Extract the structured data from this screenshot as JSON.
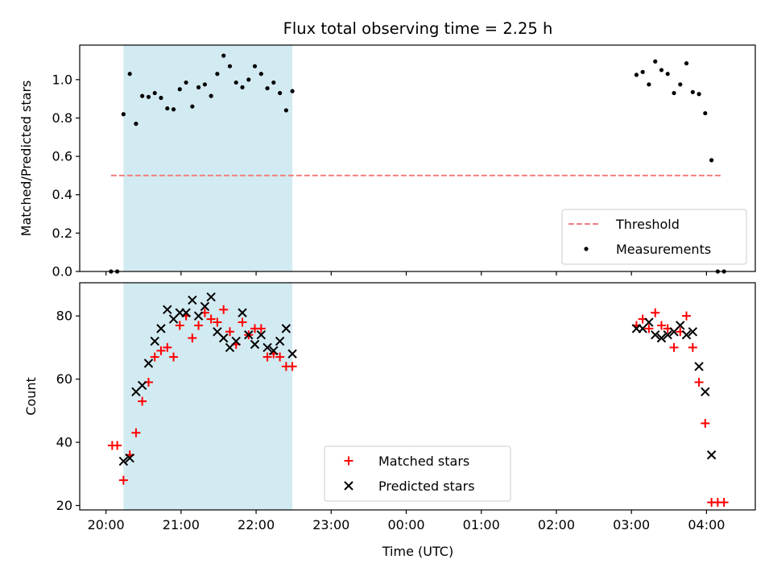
{
  "chart_data": {
    "title": "Flux total observing time = 2.25 h",
    "xlabel": "Time (UTC)",
    "x_unit": "hours since 20:00",
    "xlim": [
      -0.35,
      8.65
    ],
    "xticks": [
      {
        "value": 0,
        "label": "20:00"
      },
      {
        "value": 1,
        "label": "21:00"
      },
      {
        "value": 2,
        "label": "22:00"
      },
      {
        "value": 3,
        "label": "23:00"
      },
      {
        "value": 4,
        "label": "00:00"
      },
      {
        "value": 5,
        "label": "01:00"
      },
      {
        "value": 6,
        "label": "02:00"
      },
      {
        "value": 7,
        "label": "03:00"
      },
      {
        "value": 8,
        "label": "04:00"
      }
    ],
    "shaded_interval": {
      "start": 0.233,
      "end": 2.483,
      "color": "#add8e6"
    },
    "panels": [
      {
        "type": "scatter",
        "ylabel": "Matched/Predicted stars",
        "ylim": [
          0.0,
          1.18
        ],
        "yticks": [
          "0.0",
          "0.2",
          "0.4",
          "0.6",
          "0.8",
          "1.0"
        ],
        "ytick_values": [
          0.0,
          0.2,
          0.4,
          0.6,
          0.8,
          1.0
        ],
        "threshold": {
          "name": "Threshold",
          "value": 0.5,
          "x_start": 0.067,
          "x_end": 8.2,
          "color": "#f08080"
        },
        "series": [
          {
            "name": "Measurements",
            "color": "#000000",
            "marker": "dot",
            "points": [
              [
                0.067,
                0.0
              ],
              [
                0.15,
                0.0
              ],
              [
                0.233,
                0.82
              ],
              [
                0.317,
                1.03
              ],
              [
                0.4,
                0.77
              ],
              [
                0.483,
                0.915
              ],
              [
                0.567,
                0.91
              ],
              [
                0.65,
                0.93
              ],
              [
                0.733,
                0.905
              ],
              [
                0.817,
                0.85
              ],
              [
                0.9,
                0.845
              ],
              [
                0.983,
                0.95
              ],
              [
                1.067,
                0.985
              ],
              [
                1.15,
                0.86
              ],
              [
                1.233,
                0.96
              ],
              [
                1.317,
                0.975
              ],
              [
                1.4,
                0.915
              ],
              [
                1.483,
                1.03
              ],
              [
                1.567,
                1.125
              ],
              [
                1.65,
                1.07
              ],
              [
                1.733,
                0.985
              ],
              [
                1.817,
                0.96
              ],
              [
                1.9,
                1.0
              ],
              [
                1.983,
                1.07
              ],
              [
                2.067,
                1.03
              ],
              [
                2.15,
                0.955
              ],
              [
                2.233,
                0.985
              ],
              [
                2.317,
                0.93
              ],
              [
                2.4,
                0.84
              ],
              [
                2.483,
                0.94
              ],
              [
                7.067,
                1.025
              ],
              [
                7.15,
                1.04
              ],
              [
                7.233,
                0.975
              ],
              [
                7.317,
                1.095
              ],
              [
                7.4,
                1.05
              ],
              [
                7.483,
                1.03
              ],
              [
                7.567,
                0.93
              ],
              [
                7.65,
                0.975
              ],
              [
                7.733,
                1.085
              ],
              [
                7.817,
                0.935
              ],
              [
                7.9,
                0.925
              ],
              [
                7.983,
                0.825
              ],
              [
                8.067,
                0.58
              ],
              [
                8.15,
                0.0
              ],
              [
                8.233,
                0.0
              ]
            ]
          }
        ],
        "legend": {
          "placement": "lower right",
          "entries": [
            "Threshold",
            "Measurements"
          ]
        }
      },
      {
        "type": "scatter",
        "ylabel": "Count",
        "ylim": [
          18.6,
          90.5
        ],
        "yticks": [
          "20",
          "40",
          "60",
          "80"
        ],
        "ytick_values": [
          20,
          40,
          60,
          80
        ],
        "series": [
          {
            "name": "Matched stars",
            "color": "#ff0000",
            "marker": "plus",
            "points": [
              [
                0.083,
                39
              ],
              [
                0.15,
                39
              ],
              [
                0.233,
                28
              ],
              [
                0.317,
                36
              ],
              [
                0.4,
                43
              ],
              [
                0.483,
                53
              ],
              [
                0.567,
                59
              ],
              [
                0.65,
                67
              ],
              [
                0.733,
                69
              ],
              [
                0.817,
                70
              ],
              [
                0.9,
                67
              ],
              [
                0.983,
                77
              ],
              [
                1.067,
                80
              ],
              [
                1.15,
                73
              ],
              [
                1.233,
                77
              ],
              [
                1.317,
                81
              ],
              [
                1.4,
                79
              ],
              [
                1.483,
                78
              ],
              [
                1.567,
                82
              ],
              [
                1.65,
                75
              ],
              [
                1.733,
                71
              ],
              [
                1.817,
                78
              ],
              [
                1.9,
                74
              ],
              [
                1.983,
                76
              ],
              [
                2.067,
                76
              ],
              [
                2.15,
                67
              ],
              [
                2.233,
                68
              ],
              [
                2.317,
                67
              ],
              [
                2.4,
                64
              ],
              [
                2.483,
                64
              ],
              [
                7.067,
                77
              ],
              [
                7.15,
                79
              ],
              [
                7.233,
                76
              ],
              [
                7.317,
                81
              ],
              [
                7.4,
                77
              ],
              [
                7.483,
                76
              ],
              [
                7.567,
                70
              ],
              [
                7.65,
                75
              ],
              [
                7.733,
                80
              ],
              [
                7.817,
                70
              ],
              [
                7.9,
                59
              ],
              [
                7.983,
                46
              ],
              [
                8.067,
                21
              ],
              [
                8.15,
                21
              ],
              [
                8.233,
                21
              ]
            ]
          },
          {
            "name": "Predicted stars",
            "color": "#000000",
            "marker": "x",
            "points": [
              [
                0.233,
                34
              ],
              [
                0.317,
                35
              ],
              [
                0.4,
                56
              ],
              [
                0.483,
                58
              ],
              [
                0.567,
                65
              ],
              [
                0.65,
                72
              ],
              [
                0.733,
                76
              ],
              [
                0.817,
                82
              ],
              [
                0.9,
                79
              ],
              [
                0.983,
                81
              ],
              [
                1.067,
                81
              ],
              [
                1.15,
                85
              ],
              [
                1.233,
                80
              ],
              [
                1.317,
                83
              ],
              [
                1.4,
                86
              ],
              [
                1.483,
                75
              ],
              [
                1.567,
                73
              ],
              [
                1.65,
                70
              ],
              [
                1.733,
                72
              ],
              [
                1.817,
                81
              ],
              [
                1.9,
                74
              ],
              [
                1.983,
                71
              ],
              [
                2.067,
                74
              ],
              [
                2.15,
                70
              ],
              [
                2.233,
                69
              ],
              [
                2.317,
                72
              ],
              [
                2.4,
                76
              ],
              [
                2.483,
                68
              ],
              [
                7.067,
                76
              ],
              [
                7.15,
                76
              ],
              [
                7.233,
                78
              ],
              [
                7.317,
                74
              ],
              [
                7.4,
                73
              ],
              [
                7.483,
                74
              ],
              [
                7.567,
                75
              ],
              [
                7.65,
                77
              ],
              [
                7.733,
                74
              ],
              [
                7.817,
                75
              ],
              [
                7.9,
                64
              ],
              [
                7.983,
                56
              ],
              [
                8.067,
                36
              ]
            ]
          }
        ],
        "legend": {
          "placement": "lower center",
          "entries": [
            "Matched stars",
            "Predicted stars"
          ]
        }
      }
    ]
  }
}
